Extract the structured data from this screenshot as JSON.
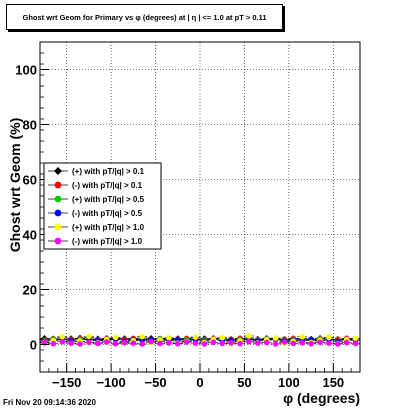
{
  "title": "Ghost wrt Geom for Primary vs φ (degrees) at | η | <= 1.0 at pT > 0.11",
  "footer": "Fri Nov 20 09:14:36 2020",
  "chart_data": {
    "type": "scatter",
    "xlabel": "φ (degrees)",
    "ylabel": "Ghost wrt Geom (%)",
    "xlim": [
      -180,
      180
    ],
    "ylim": [
      -10,
      110
    ],
    "xticks": [
      -150,
      -100,
      -50,
      0,
      50,
      100,
      150
    ],
    "yticks": [
      0,
      20,
      40,
      60,
      80,
      100
    ],
    "grid": true,
    "legend_position": "middle-left",
    "x": [
      -175,
      -165,
      -155,
      -145,
      -135,
      -125,
      -115,
      -105,
      -95,
      -85,
      -75,
      -65,
      -55,
      -45,
      -35,
      -25,
      -15,
      -5,
      5,
      15,
      25,
      35,
      45,
      55,
      65,
      75,
      85,
      95,
      105,
      115,
      125,
      135,
      145,
      155,
      165,
      175
    ],
    "series": [
      {
        "name": "(+) with pT/|q| > 0.1",
        "color": "#000000",
        "values": [
          2.2,
          2.0,
          1.8,
          2.1,
          2.3,
          1.9,
          2.0,
          2.2,
          1.8,
          2.1,
          2.0,
          1.9,
          2.2,
          2.0,
          1.8,
          2.1,
          2.0,
          1.9,
          2.1,
          2.2,
          2.0,
          1.8,
          2.1,
          2.0,
          1.9,
          2.2,
          2.0,
          1.8,
          2.1,
          2.0,
          1.9,
          2.2,
          2.0,
          1.8,
          2.1,
          2.0
        ]
      },
      {
        "name": "(-) with pT/|q| > 0.1",
        "color": "#ff0000",
        "values": [
          1.8,
          2.1,
          2.0,
          1.9,
          2.2,
          2.0,
          1.8,
          2.1,
          2.0,
          1.9,
          2.2,
          2.0,
          1.8,
          2.1,
          2.0,
          1.9,
          2.2,
          2.0,
          1.8,
          2.1,
          2.0,
          1.9,
          2.2,
          2.0,
          1.8,
          2.1,
          2.0,
          1.9,
          2.2,
          2.0,
          1.8,
          2.1,
          2.0,
          1.9,
          2.2,
          2.0
        ]
      },
      {
        "name": "(+) with pT/|q| > 0.5",
        "color": "#00cc00",
        "values": [
          1.5,
          2.0,
          2.5,
          1.2,
          1.8,
          2.6,
          1.4,
          1.9,
          2.3,
          1.1,
          1.7,
          2.4,
          1.6,
          2.0,
          2.2,
          1.3,
          1.8,
          2.5,
          1.5,
          1.9,
          2.1,
          1.2,
          1.7,
          2.4,
          1.6,
          2.0,
          2.3,
          1.4,
          1.8,
          2.2,
          1.5,
          1.9,
          2.6,
          1.3,
          1.7,
          2.0
        ]
      },
      {
        "name": "(-) with pT/|q| > 0.5",
        "color": "#0000ff",
        "values": [
          1.2,
          1.6,
          2.0,
          1.4,
          1.1,
          1.8,
          1.5,
          1.3,
          1.9,
          1.2,
          1.6,
          1.4,
          1.7,
          1.1,
          1.5,
          1.8,
          1.3,
          1.6,
          1.2,
          1.9,
          1.4,
          1.5,
          1.1,
          1.7,
          1.3,
          1.6,
          1.8,
          1.2,
          1.5,
          1.4,
          1.9,
          1.3,
          1.6,
          1.1,
          1.7,
          1.4
        ]
      },
      {
        "name": "(+) with pT/|q| > 1.0",
        "color": "#ffff00",
        "values": [
          0.8,
          1.5,
          2.8,
          0.5,
          1.2,
          3.0,
          0.6,
          1.8,
          2.6,
          0.4,
          1.4,
          2.9,
          0.7,
          1.6,
          2.4,
          0.5,
          1.1,
          2.7,
          0.8,
          1.9,
          2.5,
          0.3,
          1.3,
          3.1,
          0.6,
          1.7,
          2.3,
          0.5,
          1.2,
          2.8,
          0.7,
          1.5,
          2.6,
          0.4,
          1.8,
          2.2
        ]
      },
      {
        "name": "(-) with pT/|q| > 1.0",
        "color": "#ff00ff",
        "values": [
          0.6,
          0.3,
          1.0,
          0.5,
          0.2,
          0.8,
          0.4,
          0.9,
          0.3,
          0.7,
          0.5,
          0.2,
          1.1,
          0.4,
          0.6,
          0.3,
          0.9,
          0.5,
          0.2,
          0.8,
          0.4,
          0.6,
          0.3,
          1.0,
          0.5,
          0.7,
          0.2,
          0.9,
          0.4,
          0.6,
          0.3,
          0.8,
          0.5,
          0.2,
          0.7,
          0.4
        ]
      }
    ]
  }
}
